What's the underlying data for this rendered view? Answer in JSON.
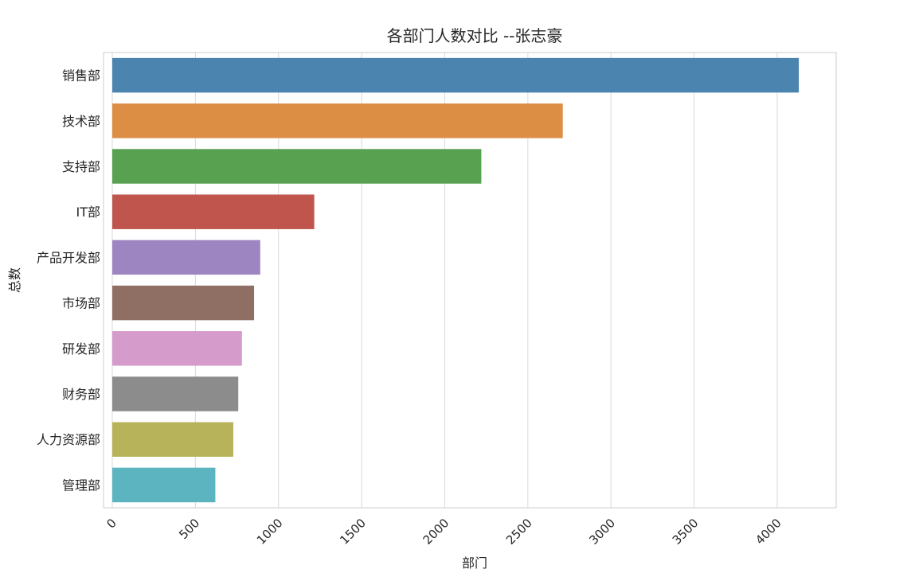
{
  "chart_data": {
    "type": "bar",
    "orientation": "horizontal",
    "title": "各部门人数对比 --张志豪",
    "xlabel": "部门",
    "ylabel": "总数",
    "categories": [
      "销售部",
      "技术部",
      "支持部",
      "IT部",
      "产品开发部",
      "市场部",
      "研发部",
      "财务部",
      "人力资源部",
      "管理部"
    ],
    "values": [
      4130,
      2710,
      2220,
      1215,
      890,
      853,
      780,
      758,
      728,
      620
    ],
    "colors": [
      "#4c84b0",
      "#dd8e45",
      "#58a150",
      "#c0554e",
      "#9d85c1",
      "#8f6e64",
      "#d59bca",
      "#8c8c8c",
      "#b7b35a",
      "#5db4c1"
    ],
    "xlim": [
      0,
      4350
    ],
    "xticks": [
      0,
      500,
      1000,
      1500,
      2000,
      2500,
      3000,
      3500,
      4000
    ],
    "xtick_rotation": 45,
    "grid": true
  }
}
